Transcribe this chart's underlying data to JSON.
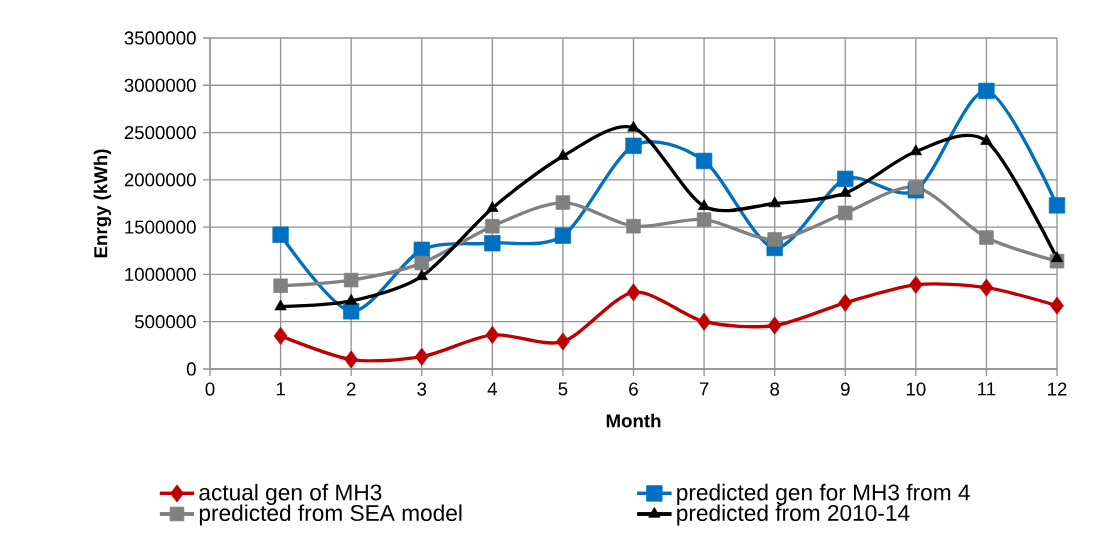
{
  "chart_data": {
    "type": "line",
    "xlabel": "Month",
    "ylabel": "Enrgy (kWh)",
    "x": [
      1,
      2,
      3,
      4,
      5,
      6,
      7,
      8,
      9,
      10,
      11,
      12
    ],
    "xlim": [
      0,
      12
    ],
    "xticks": [
      0,
      1,
      2,
      3,
      4,
      5,
      6,
      7,
      8,
      9,
      10,
      11,
      12
    ],
    "ylim": [
      0,
      3500000
    ],
    "yticks": [
      0,
      500000,
      1000000,
      1500000,
      2000000,
      2500000,
      3000000,
      3500000
    ],
    "grid": true,
    "legend": "bottom",
    "series": [
      {
        "name": "actual gen of MH3",
        "color": "#c00000",
        "marker": "diamond",
        "values": [
          350000,
          100000,
          130000,
          360000,
          290000,
          810000,
          500000,
          460000,
          700000,
          890000,
          860000,
          670000
        ]
      },
      {
        "name": "predicted gen for MH3 from 4",
        "color": "#0070c0",
        "marker": "square",
        "values": [
          1420000,
          610000,
          1260000,
          1330000,
          1410000,
          2360000,
          2200000,
          1280000,
          2010000,
          1890000,
          2940000,
          1730000
        ]
      },
      {
        "name": "predicted from SEA model",
        "color": "#808080",
        "marker": "square",
        "values": [
          880000,
          940000,
          1120000,
          1510000,
          1760000,
          1510000,
          1580000,
          1370000,
          1650000,
          1920000,
          1390000,
          1140000
        ]
      },
      {
        "name": "predicted from 2010-14",
        "color": "#000000",
        "marker": "triangle",
        "values": [
          660000,
          720000,
          980000,
          1700000,
          2250000,
          2550000,
          1720000,
          1750000,
          1860000,
          2300000,
          2410000,
          1170000
        ]
      }
    ]
  }
}
